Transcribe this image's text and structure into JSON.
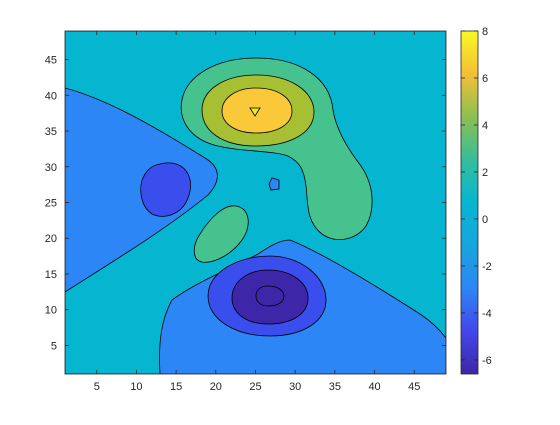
{
  "chart_data": {
    "type": "contourf",
    "x_range": [
      1,
      49
    ],
    "y_range": [
      1,
      49
    ],
    "x_ticks": [
      "5",
      "10",
      "15",
      "20",
      "25",
      "30",
      "35",
      "40",
      "45"
    ],
    "y_ticks": [
      "5",
      "10",
      "15",
      "20",
      "25",
      "30",
      "35",
      "40",
      "45"
    ],
    "colorbar": {
      "range": [
        -6.6,
        8.0
      ],
      "ticks": [
        "-6",
        "-4",
        "-2",
        "0",
        "2",
        "4",
        "6",
        "8"
      ]
    },
    "contour_levels": [
      -6,
      -4,
      -2,
      0,
      2,
      4,
      6,
      8
    ],
    "level_colors": [
      "#3e26a8",
      "#3a4ded",
      "#2c86f5",
      "#06b6d1",
      "#46c28f",
      "#a6bf33",
      "#f9c93a",
      "#fae51f"
    ],
    "features": [
      {
        "kind": "peak",
        "center": [
          25,
          37.5
        ],
        "value": 8
      },
      {
        "kind": "ridge",
        "center": [
          36,
          23
        ],
        "value": 2.5
      },
      {
        "kind": "ridge",
        "center": [
          22,
          20
        ],
        "value": 2.2
      },
      {
        "kind": "trough",
        "center": [
          27,
          12
        ],
        "value": -6.6
      },
      {
        "kind": "trough",
        "center": [
          13.5,
          26.5
        ],
        "value": -3.5
      },
      {
        "kind": "trough",
        "center": [
          27.5,
          27.3
        ],
        "value": -2.1
      }
    ]
  }
}
